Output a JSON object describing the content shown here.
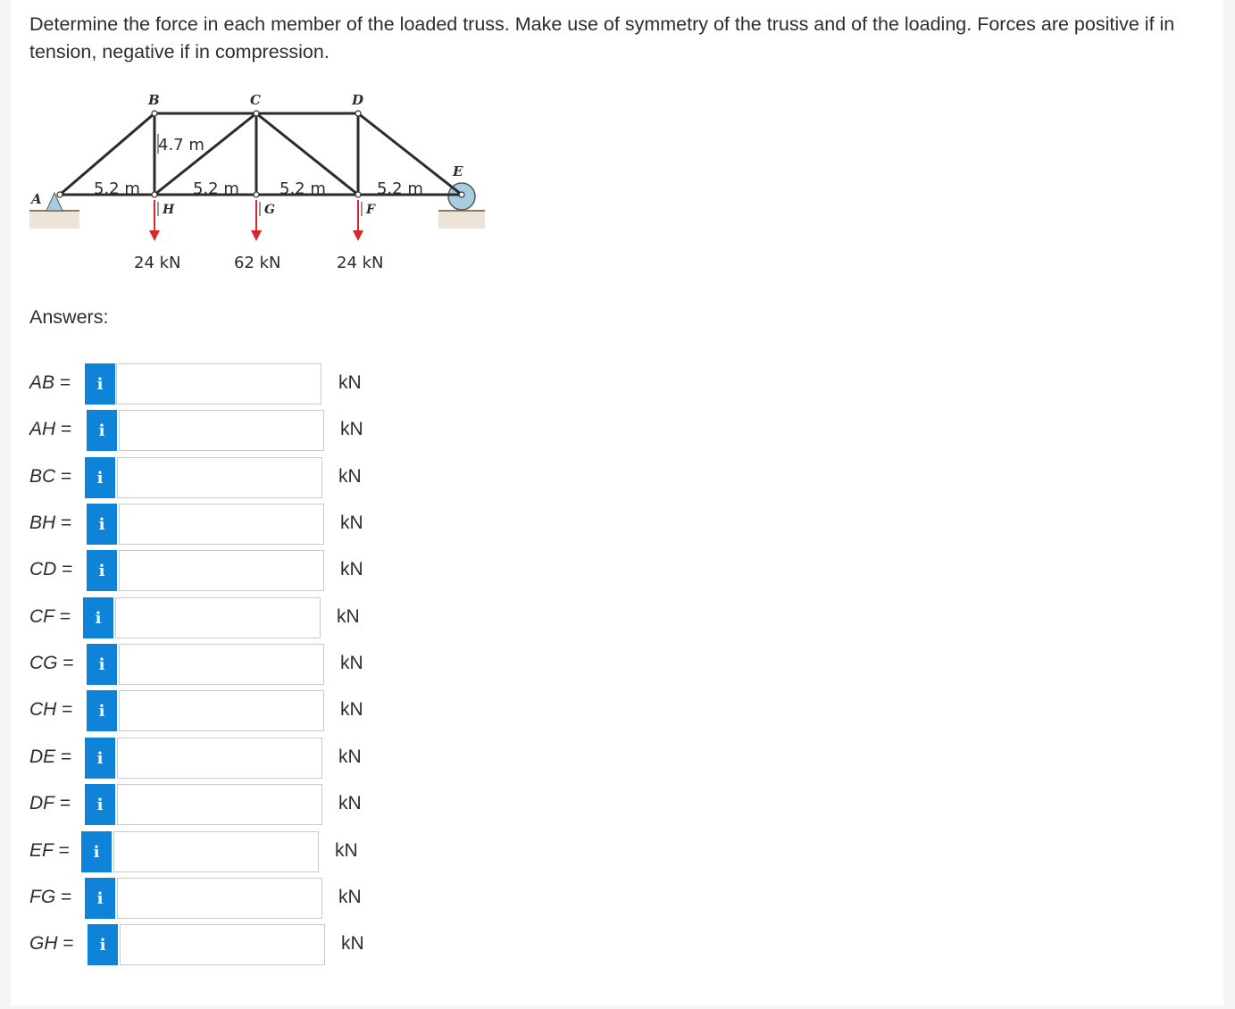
{
  "question": "Determine the force in each member of the loaded truss. Make use of symmetry of the truss and of the loading. Forces are positive if in tension, negative if in compression.",
  "figure": {
    "nodes": {
      "A": "A",
      "B": "B",
      "C": "C",
      "D": "D",
      "E": "E",
      "F": "F",
      "G": "G",
      "H": "H"
    },
    "height_label": "4.7 m",
    "span_labels": [
      "5.2 m",
      "5.2 m",
      "5.2 m",
      "5.2 m"
    ],
    "loads": [
      "24 kN",
      "62 kN",
      "24 kN"
    ]
  },
  "answers_heading": "Answers:",
  "answers": [
    {
      "member": "AB",
      "eq": " =",
      "value": "",
      "unit": "kN"
    },
    {
      "member": "AH",
      "eq": " =",
      "value": "",
      "unit": "kN"
    },
    {
      "member": "BC",
      "eq": " =",
      "value": "",
      "unit": "kN"
    },
    {
      "member": "BH",
      "eq": " =",
      "value": "",
      "unit": "kN"
    },
    {
      "member": "CD",
      "eq": " =",
      "value": "",
      "unit": "kN"
    },
    {
      "member": "CF",
      "eq": " =",
      "value": "",
      "unit": "kN"
    },
    {
      "member": "CG",
      "eq": " =",
      "value": "",
      "unit": "kN"
    },
    {
      "member": "CH",
      "eq": " =",
      "value": "",
      "unit": "kN"
    },
    {
      "member": "DE",
      "eq": " =",
      "value": "",
      "unit": "kN"
    },
    {
      "member": "DF",
      "eq": " =",
      "value": "",
      "unit": "kN"
    },
    {
      "member": "EF",
      "eq": " =",
      "value": "",
      "unit": "kN"
    },
    {
      "member": "FG",
      "eq": " =",
      "value": "",
      "unit": "kN"
    },
    {
      "member": "GH",
      "eq": " =",
      "value": "",
      "unit": "kN"
    }
  ],
  "info_icon": "i",
  "colors": {
    "info_button": "#0f83d8",
    "truss": "#2b2b2b",
    "load_arrow": "#d9262c",
    "roller": "#a9cde0",
    "ground": "#d8c6b2"
  }
}
